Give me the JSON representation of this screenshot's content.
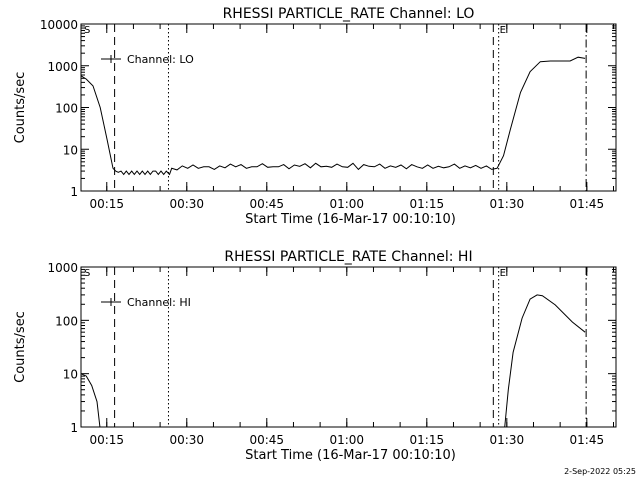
{
  "footer_timestamp": "2-Sep-2022 05:25",
  "chart_data": [
    {
      "type": "line",
      "title": "RHESSI PARTICLE_RATE Channel: LO",
      "xlabel": "Start Time (16-Mar-17 00:10:10)",
      "ylabel": "Counts/sec",
      "yscale": "log",
      "ylim": [
        1,
        10000
      ],
      "yticks": [
        "1",
        "10",
        "100",
        "1000",
        "10000"
      ],
      "xlim_minutes_since_start": [
        0,
        100.3
      ],
      "xticks": [
        {
          "label": "00:15",
          "t": 4.83
        },
        {
          "label": "00:30",
          "t": 19.83
        },
        {
          "label": "00:45",
          "t": 34.83
        },
        {
          "label": "01:00",
          "t": 49.83
        },
        {
          "label": "01:15",
          "t": 64.83
        },
        {
          "label": "01:30",
          "t": 79.83
        },
        {
          "label": "01:45",
          "t": 94.83
        }
      ],
      "legend": {
        "label": "Channel: LO",
        "placement": "top-left"
      },
      "markers": {
        "start": "S",
        "end": "E"
      },
      "series": [
        {
          "name": "Channel: LO",
          "points": [
            [
              0,
              575
            ],
            [
              1,
              480
            ],
            [
              2.25,
              330
            ],
            [
              3.6,
              100
            ],
            [
              4.9,
              17
            ],
            [
              6,
              3.5
            ],
            [
              6.5,
              3
            ],
            [
              7,
              2.8
            ],
            [
              7.5,
              3
            ],
            [
              8,
              2.5
            ],
            [
              8.5,
              3
            ],
            [
              9,
              2.5
            ],
            [
              9.5,
              3
            ],
            [
              10,
              2.5
            ],
            [
              10.5,
              3
            ],
            [
              11,
              2.5
            ],
            [
              11.5,
              3
            ],
            [
              12,
              2.5
            ],
            [
              12.5,
              3
            ],
            [
              13,
              2.5
            ],
            [
              13.5,
              3
            ],
            [
              14,
              3
            ],
            [
              14.5,
              2.5
            ],
            [
              15,
              3
            ],
            [
              15.5,
              2.5
            ],
            [
              16,
              3
            ],
            [
              16.6,
              2.5
            ],
            [
              17,
              3.5
            ],
            [
              18,
              3.2
            ],
            [
              19,
              4
            ],
            [
              20,
              3.5
            ],
            [
              21,
              4.2
            ],
            [
              22,
              3.5
            ],
            [
              23,
              3.8
            ],
            [
              24,
              3.8
            ],
            [
              25,
              3.3
            ],
            [
              26,
              4
            ],
            [
              27,
              3.6
            ],
            [
              28,
              4.4
            ],
            [
              29,
              3.8
            ],
            [
              30,
              4.3
            ],
            [
              31,
              3.5
            ],
            [
              32,
              3.8
            ],
            [
              33,
              3.8
            ],
            [
              34,
              4.5
            ],
            [
              35,
              3.7
            ],
            [
              36,
              3.8
            ],
            [
              37,
              3.8
            ],
            [
              38,
              4.3
            ],
            [
              39,
              3.4
            ],
            [
              40,
              4.2
            ],
            [
              41,
              3.9
            ],
            [
              42,
              4.5
            ],
            [
              43,
              3.6
            ],
            [
              44,
              4.6
            ],
            [
              45,
              3.8
            ],
            [
              46,
              3.9
            ],
            [
              47,
              3.7
            ],
            [
              48,
              4.4
            ],
            [
              49,
              3.8
            ],
            [
              50,
              3.7
            ],
            [
              51,
              4.6
            ],
            [
              52,
              3.3
            ],
            [
              53,
              4.3
            ],
            [
              54,
              3.9
            ],
            [
              55,
              3.8
            ],
            [
              56,
              4.4
            ],
            [
              57,
              3.5
            ],
            [
              58,
              4
            ],
            [
              59,
              3.7
            ],
            [
              60,
              4.2
            ],
            [
              61,
              3.4
            ],
            [
              62,
              4.3
            ],
            [
              63,
              3.8
            ],
            [
              64,
              3.5
            ],
            [
              65,
              4.2
            ],
            [
              66,
              3.5
            ],
            [
              67,
              3.9
            ],
            [
              68,
              3.6
            ],
            [
              69,
              3.8
            ],
            [
              70,
              4.4
            ],
            [
              71,
              3.5
            ],
            [
              72,
              4
            ],
            [
              73,
              3.6
            ],
            [
              74,
              4.1
            ],
            [
              75,
              3.5
            ],
            [
              76,
              4
            ],
            [
              77,
              3.3
            ],
            [
              78,
              3.5
            ],
            [
              79.2,
              7
            ],
            [
              80.5,
              30
            ],
            [
              82.4,
              230
            ],
            [
              84.2,
              720
            ],
            [
              86.1,
              1250
            ],
            [
              88,
              1300
            ],
            [
              91.7,
              1300
            ],
            [
              93.2,
              1600
            ],
            [
              94.5,
              1500
            ]
          ]
        }
      ],
      "reference_lines": [
        {
          "style": "dashed",
          "t": 6.3
        },
        {
          "style": "dotted",
          "t": 16.4
        },
        {
          "style": "dashed",
          "t": 77.3
        },
        {
          "style": "dotted",
          "t": 78.3
        },
        {
          "style": "dashdot",
          "t": 94.7
        }
      ]
    },
    {
      "type": "line",
      "title": "RHESSI PARTICLE_RATE Channel: HI",
      "xlabel": "Start Time (16-Mar-17 00:10:10)",
      "ylabel": "Counts/sec",
      "yscale": "log",
      "ylim": [
        1,
        1000
      ],
      "yticks": [
        "1",
        "10",
        "100",
        "1000"
      ],
      "xlim_minutes_since_start": [
        0,
        100.3
      ],
      "xticks": [
        {
          "label": "00:15",
          "t": 4.83
        },
        {
          "label": "00:30",
          "t": 19.83
        },
        {
          "label": "00:45",
          "t": 34.83
        },
        {
          "label": "01:00",
          "t": 49.83
        },
        {
          "label": "01:15",
          "t": 64.83
        },
        {
          "label": "01:30",
          "t": 79.83
        },
        {
          "label": "01:45",
          "t": 94.83
        }
      ],
      "legend": {
        "label": "Channel: HI",
        "placement": "top-left"
      },
      "markers": {
        "start": "S",
        "end": "E"
      },
      "series": [
        {
          "name": "Channel: HI",
          "points": [
            [
              0,
              10
            ],
            [
              1,
              9
            ],
            [
              2,
              6
            ],
            [
              3,
              3
            ],
            [
              3.6,
              0.9
            ],
            [
              79.4,
              0.9
            ],
            [
              80.1,
              5
            ],
            [
              81,
              25
            ],
            [
              82.7,
              110
            ],
            [
              84.2,
              250
            ],
            [
              85.5,
              300
            ],
            [
              86.5,
              290
            ],
            [
              88.9,
              195
            ],
            [
              92.1,
              93
            ],
            [
              94.5,
              60
            ]
          ]
        }
      ],
      "reference_lines": [
        {
          "style": "dashed",
          "t": 6.3
        },
        {
          "style": "dotted",
          "t": 16.4
        },
        {
          "style": "dashed",
          "t": 77.3
        },
        {
          "style": "dotted",
          "t": 78.3
        },
        {
          "style": "dashdot",
          "t": 94.7
        }
      ]
    }
  ]
}
